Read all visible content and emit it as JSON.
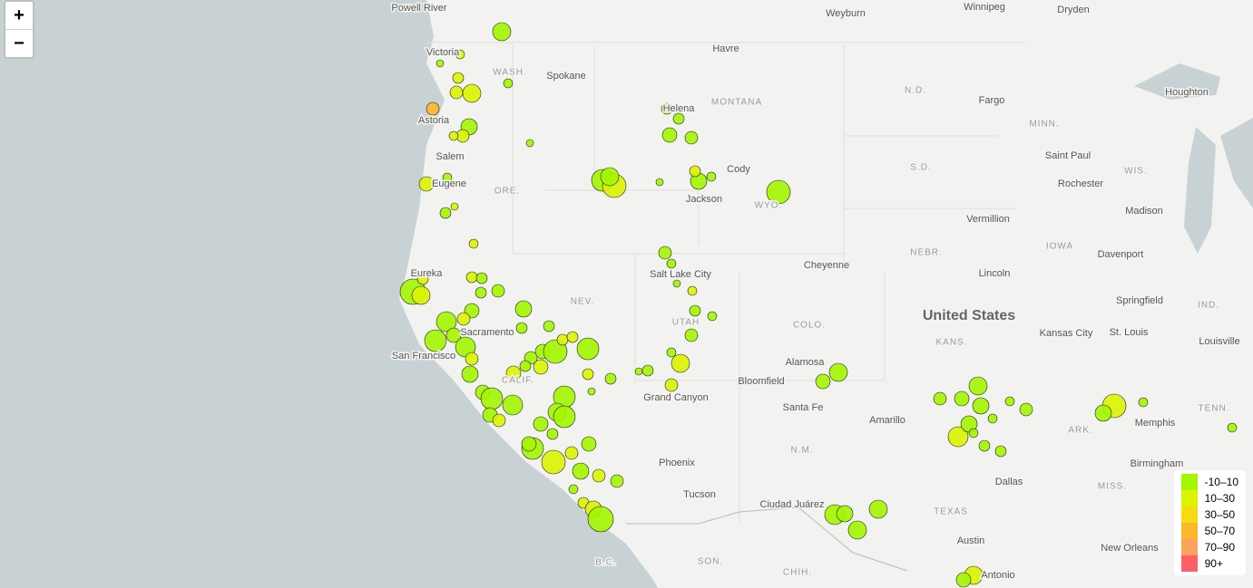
{
  "zoom": {
    "in": "+",
    "out": "−"
  },
  "labels": [
    "Powell River",
    "Weyburn",
    "Winnipeg",
    "Dryden",
    "Victoria",
    "Havre",
    "WASH.",
    "Spokane",
    "N.D.",
    "Fargo",
    "Houghton",
    "MONTANA",
    "Helena",
    "Astoria",
    "MINN.",
    "Salem",
    "Saint Paul",
    "S.D.",
    "Cody",
    "WIS.",
    "Eugene",
    "Rochester",
    "Jackson",
    "ORE.",
    "WYO.",
    "Madison",
    "Vermillion",
    "IOWA",
    "NEBR.",
    "Davenport",
    "Cheyenne",
    "Lincoln",
    "Salt Lake City",
    "Eureka",
    "NEV.",
    "Springfield",
    "IND.",
    "United States",
    "Sacramento",
    "UTAH",
    "COLO.",
    "Kansas City",
    "St. Louis",
    "Louisville",
    "KANS.",
    "San Francisco",
    "CALIF.",
    "Alamosa",
    "Bloomfield",
    "Grand Canyon",
    "Santa Fe",
    "Amarillo",
    "TENN.",
    "Memphis",
    "ARK.",
    "N.M.",
    "Phoenix",
    "Birmingham",
    "Dallas",
    "MISS.",
    "Tucson",
    "Ciudad Juárez",
    "TEXAS",
    "Austin",
    "New Orleans",
    "SON.",
    "CHIH.",
    "Antonio",
    "B.C."
  ],
  "legend": [
    {
      "label": "-10–10",
      "color": "#a3f600"
    },
    {
      "label": "10–30",
      "color": "#dcf400"
    },
    {
      "label": "30–50",
      "color": "#f7db11"
    },
    {
      "label": "50–70",
      "color": "#fdb72a"
    },
    {
      "label": "70–90",
      "color": "#fca35d"
    },
    {
      "label": "90+",
      "color": "#ff5f65"
    }
  ]
}
